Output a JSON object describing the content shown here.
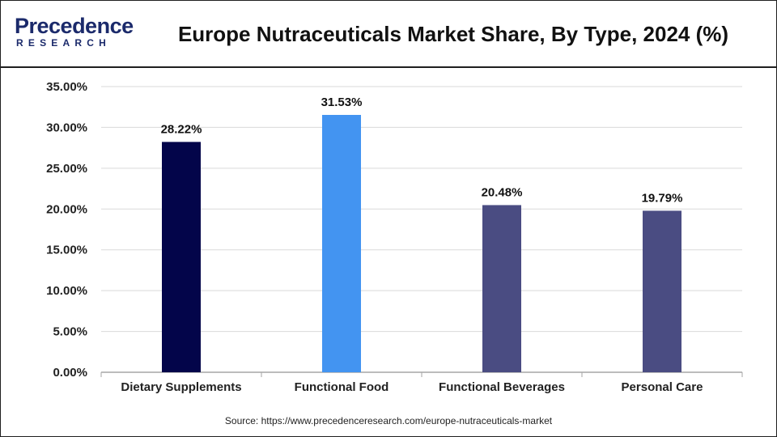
{
  "header": {
    "logo_top": "Precedence",
    "logo_bottom": "RESEARCH",
    "title": "Europe Nutraceuticals Market Share, By Type, 2024 (%)"
  },
  "footer": {
    "source": "Source: https://www.precedenceresearch.com/europe-nutraceuticals-market"
  },
  "colors": {
    "logo": "#1b2a6b",
    "grid": "#d9d9d9",
    "axis": "#a6a6a6"
  },
  "chart_data": {
    "type": "bar",
    "title": "Europe Nutraceuticals Market Share, By Type, 2024 (%)",
    "categories": [
      "Dietary Supplements",
      "Functional Food",
      "Functional Beverages",
      "Personal Care"
    ],
    "values": [
      28.22,
      31.53,
      20.48,
      19.79
    ],
    "data_labels": [
      "28.22%",
      "31.53%",
      "20.48%",
      "19.79%"
    ],
    "bar_colors": [
      "#03054a",
      "#4394f1",
      "#4a4c82",
      "#4a4c82"
    ],
    "ylim": [
      0,
      35
    ],
    "yticks": [
      0,
      5,
      10,
      15,
      20,
      25,
      30,
      35
    ],
    "ytick_labels": [
      "0.00%",
      "5.00%",
      "10.00%",
      "15.00%",
      "20.00%",
      "25.00%",
      "30.00%",
      "35.00%"
    ],
    "xlabel": "",
    "ylabel": "",
    "grid": true,
    "legend": false
  }
}
